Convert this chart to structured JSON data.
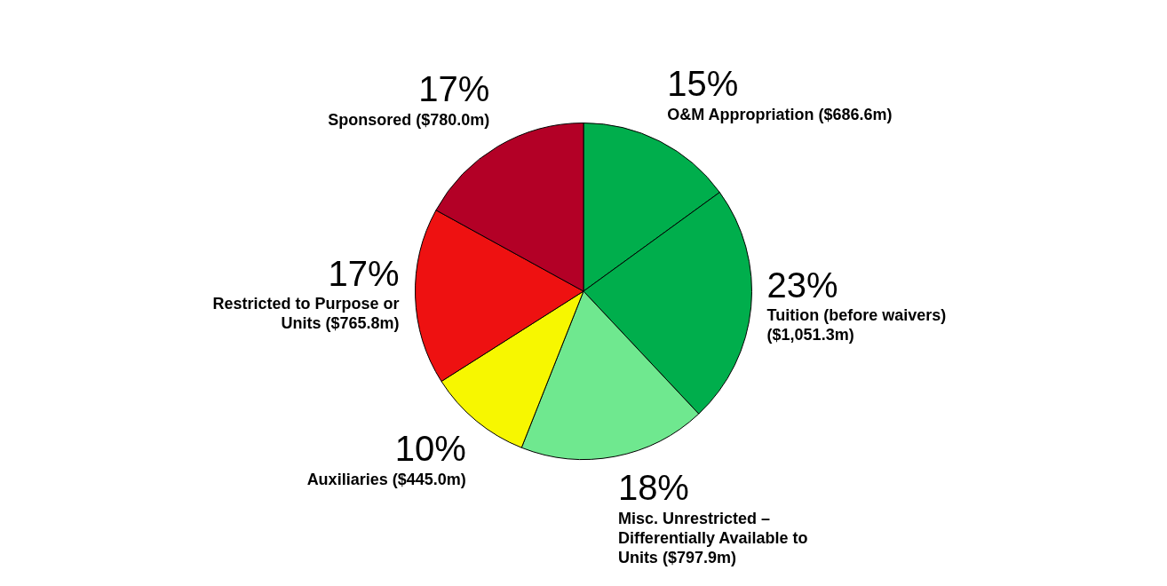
{
  "chart_data": {
    "type": "pie",
    "categories": [
      "O&M Appropriation ($686.6m)",
      "Tuition (before waivers) ($1,051.3m)",
      "Misc. Unrestricted – Differentially Available to Units ($797.9m)",
      "Auxiliaries ($445.0m)",
      "Restricted to Purpose or Units ($765.8m)",
      "Sponsored ($780.0m)"
    ],
    "values": [
      15,
      23,
      18,
      10,
      17,
      17
    ],
    "value_labels": [
      "15%",
      "23%",
      "18%",
      "10%",
      "17%",
      "17%"
    ],
    "colors": [
      "#00ae4c",
      "#00ae4c",
      "#6fe88f",
      "#f7f700",
      "#ee1111",
      "#b30026"
    ],
    "legend": false
  }
}
